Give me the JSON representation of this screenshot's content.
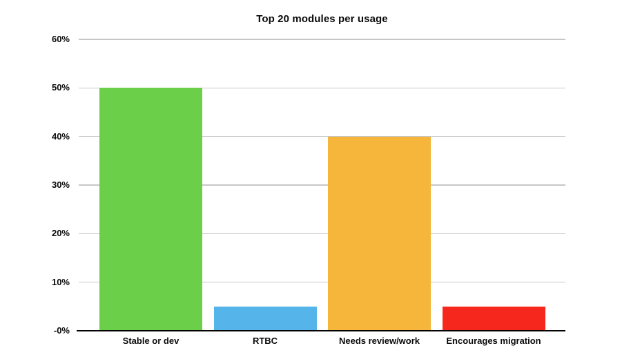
{
  "chart_data": {
    "type": "bar",
    "title": "Top 20 modules per usage",
    "categories": [
      "Stable or dev",
      "RTBC",
      "Needs review/work",
      "Encourages migration"
    ],
    "values": [
      50,
      5,
      40,
      5
    ],
    "colors": [
      "#6CCF4A",
      "#55B4E9",
      "#F5B63B",
      "#F6271D"
    ],
    "y_ticks": [
      "60%",
      "50%",
      "40%",
      "30%",
      "20%",
      "10%",
      "-0%"
    ],
    "y_tick_values": [
      60,
      50,
      40,
      30,
      20,
      10,
      0
    ],
    "ylim": [
      0,
      60
    ],
    "xlabel": "",
    "ylabel": "",
    "grid": true,
    "legend": "none",
    "background_color": "#ffffff",
    "gridline_color": "#c7c7c7",
    "axis_line_color": "#000000"
  }
}
